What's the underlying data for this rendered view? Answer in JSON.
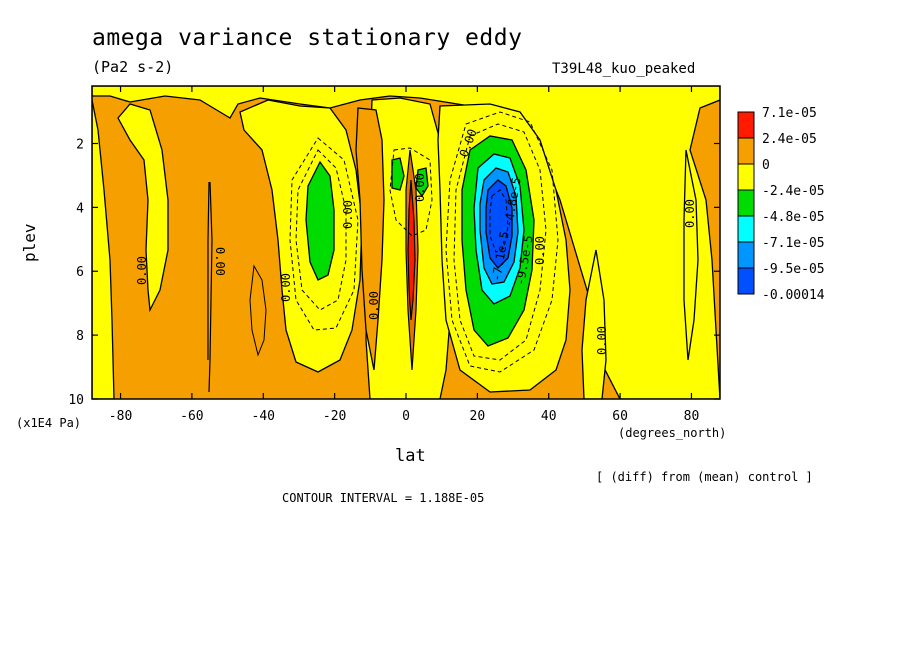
{
  "title": "amega variance stationary eddy",
  "units": "(Pa2 s-2)",
  "run_name": "T39L48_kuo_peaked",
  "y_axis_label": "plev",
  "y_axis_units": "(x1E4 Pa)",
  "x_axis_label": "lat",
  "x_axis_units": "(degrees_north)",
  "diff_note": "[ (diff) from (mean) control ]",
  "contour_interval": "CONTOUR INTERVAL = 1.188E-05",
  "colors": {
    "orange": "#f5a000",
    "yellow": "#ffff00",
    "green": "#00dc00",
    "cyan": "#00ffff",
    "lightblue": "#0096ff",
    "blue": "#0050ff",
    "red": "#ff1a00",
    "darkorange": "#cc6600"
  },
  "chart_data": {
    "type": "heatmap",
    "title": "amega variance stationary eddy",
    "xlabel": "lat",
    "ylabel": "plev",
    "xlim": [
      -88,
      88
    ],
    "ylim": [
      10,
      0.2
    ],
    "x_ticks": [
      "-80",
      "-60",
      "-40",
      "-20",
      "0",
      "20",
      "40",
      "60",
      "80"
    ],
    "y_ticks": [
      "2",
      "4",
      "6",
      "8",
      "10"
    ],
    "legend": {
      "placement": "right",
      "entries": [
        {
          "label": "7.1e-05",
          "color": "#ff1a00"
        },
        {
          "label": "2.4e-05",
          "color": "#f5a000"
        },
        {
          "label": "0",
          "color": "#ffff00"
        },
        {
          "label": "-2.4e-05",
          "color": "#00dc00"
        },
        {
          "label": "-4.8e-05",
          "color": "#00ffff"
        },
        {
          "label": "-7.1e-05",
          "color": "#0096ff"
        },
        {
          "label": "-9.5e-05",
          "color": "#0050ff"
        },
        {
          "label": "-0.00014",
          "color": "#0050ff"
        }
      ]
    },
    "contour_labels": [
      "0.00",
      "0.00",
      "0.00",
      "0.00",
      "0.00",
      "0.00",
      "0.00",
      "0.00",
      "0.00",
      "0.00",
      "0.00",
      "-7.1e-5",
      "-9.5e-5",
      "-4.8e-5",
      "0.00"
    ]
  }
}
